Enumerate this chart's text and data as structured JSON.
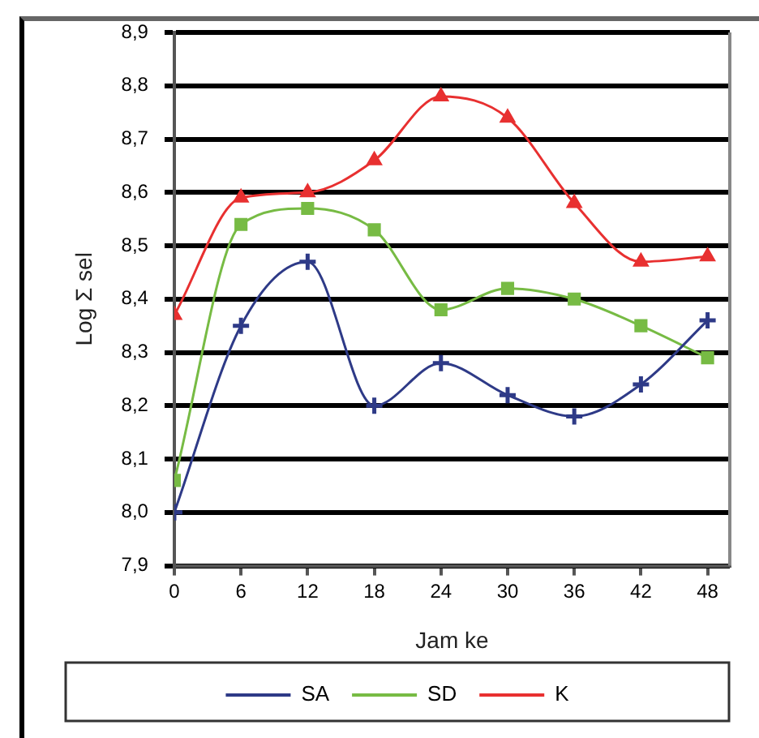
{
  "chart_data": {
    "type": "line",
    "xlabel": "Jam ke",
    "ylabel": "Log Σ sel",
    "x": [
      0,
      6,
      12,
      18,
      24,
      30,
      36,
      42,
      48
    ],
    "series": [
      {
        "name": "SA",
        "color": "#2e3a87",
        "marker": "cross",
        "values": [
          8.0,
          8.35,
          8.47,
          8.2,
          8.28,
          8.22,
          8.18,
          8.24,
          8.36
        ]
      },
      {
        "name": "SD",
        "color": "#77bb44",
        "marker": "square",
        "values": [
          8.06,
          8.54,
          8.57,
          8.53,
          8.38,
          8.42,
          8.4,
          8.35,
          8.29
        ]
      },
      {
        "name": "K",
        "color": "#e83030",
        "marker": "triangle",
        "values": [
          8.37,
          8.59,
          8.6,
          8.66,
          8.78,
          8.74,
          8.58,
          8.47,
          8.48
        ]
      }
    ],
    "xlim": [
      0,
      50
    ],
    "xticks": [
      0,
      6,
      12,
      18,
      24,
      30,
      36,
      42,
      48
    ],
    "ylim": [
      7.9,
      8.9
    ],
    "yticks": [
      {
        "value": 7.9,
        "label": "7,9"
      },
      {
        "value": 8.0,
        "label": "8,0"
      },
      {
        "value": 8.1,
        "label": "8,1"
      },
      {
        "value": 8.2,
        "label": "8,2"
      },
      {
        "value": 8.3,
        "label": "8,3"
      },
      {
        "value": 8.4,
        "label": "8,4"
      },
      {
        "value": 8.5,
        "label": "8,5"
      },
      {
        "value": 8.6,
        "label": "8,6"
      },
      {
        "value": 8.7,
        "label": "8,7"
      },
      {
        "value": 8.8,
        "label": "8,8"
      },
      {
        "value": 8.9,
        "label": "8,9"
      }
    ],
    "grid": "y",
    "legend": "bottom",
    "line_style": "solid"
  }
}
